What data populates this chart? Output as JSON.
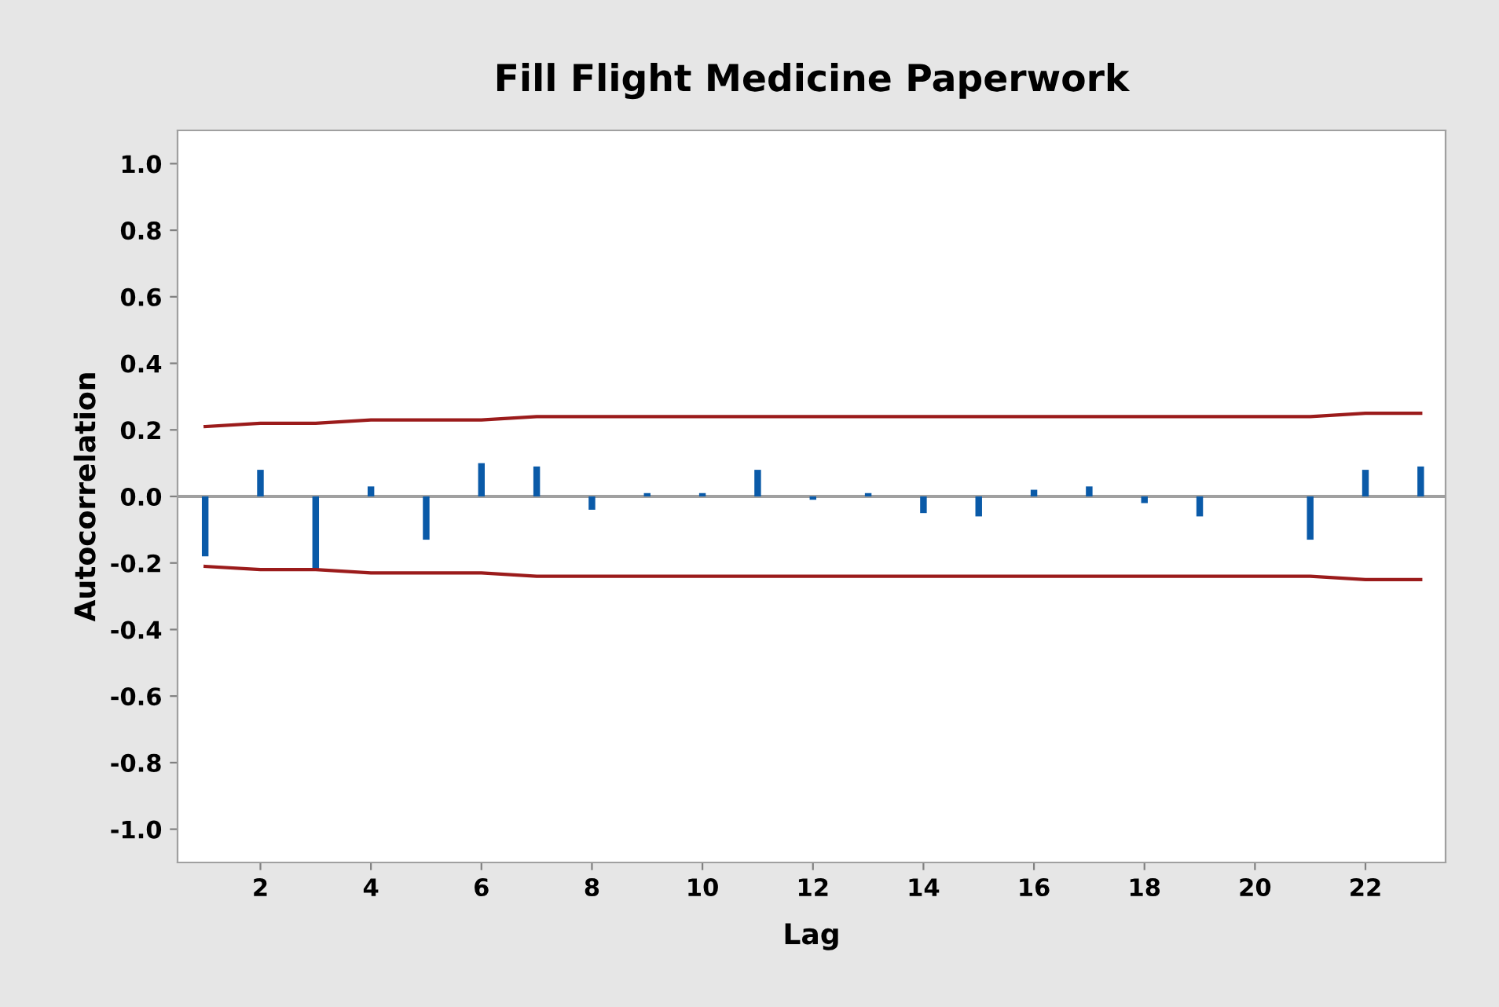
{
  "chart_data": {
    "type": "bar",
    "title": "Fill Flight Medicine Paperwork",
    "xlabel": "Lag",
    "ylabel": "Autocorrelation",
    "x": [
      1,
      2,
      3,
      4,
      5,
      6,
      7,
      8,
      9,
      10,
      11,
      12,
      13,
      14,
      15,
      16,
      17,
      18,
      19,
      20,
      21,
      22,
      23
    ],
    "series": [
      {
        "color": "#0a5aa8",
        "values": [
          -0.18,
          0.08,
          -0.22,
          0.03,
          -0.13,
          0.1,
          0.09,
          -0.04,
          0.01,
          0.01,
          0.08,
          -0.01,
          0.01,
          -0.05,
          -0.06,
          0.02,
          0.03,
          -0.02,
          -0.06,
          0.0,
          -0.13,
          0.08,
          0.09
        ]
      },
      {
        "type": "line",
        "color": "#9b1b1b",
        "values": [
          0.21,
          0.22,
          0.22,
          0.23,
          0.23,
          0.23,
          0.24,
          0.24,
          0.24,
          0.24,
          0.24,
          0.24,
          0.24,
          0.24,
          0.24,
          0.24,
          0.24,
          0.24,
          0.24,
          0.24,
          0.24,
          0.25,
          0.25
        ]
      },
      {
        "type": "line",
        "color": "#9b1b1b",
        "values": [
          -0.21,
          -0.22,
          -0.22,
          -0.23,
          -0.23,
          -0.23,
          -0.24,
          -0.24,
          -0.24,
          -0.24,
          -0.24,
          -0.24,
          -0.24,
          -0.24,
          -0.24,
          -0.24,
          -0.24,
          -0.24,
          -0.24,
          -0.24,
          -0.24,
          -0.25,
          -0.25
        ]
      }
    ],
    "xlim": [
      0.5,
      23.45
    ],
    "xticks": [
      2,
      4,
      6,
      8,
      10,
      12,
      14,
      16,
      18,
      20,
      22
    ],
    "ylim": [
      -1.1,
      1.1
    ],
    "yticks": [
      {
        "value": -1.0,
        "label": "-1.0"
      },
      {
        "value": -0.8,
        "label": "-0.8"
      },
      {
        "value": -0.6,
        "label": "-0.6"
      },
      {
        "value": -0.4,
        "label": "-0.4"
      },
      {
        "value": -0.2,
        "label": "-0.2"
      },
      {
        "value": 0.0,
        "label": "0.0"
      },
      {
        "value": 0.2,
        "label": "0.2"
      },
      {
        "value": 0.4,
        "label": "0.4"
      },
      {
        "value": 0.6,
        "label": "0.6"
      },
      {
        "value": 0.8,
        "label": "0.8"
      },
      {
        "value": 1.0,
        "label": "1.0"
      }
    ],
    "ref_lines": [
      {
        "axis": "y",
        "value": 0,
        "color": "#a0a0a0"
      }
    ],
    "grid": false,
    "legend": false,
    "marker": "none",
    "line_style": "solid"
  }
}
